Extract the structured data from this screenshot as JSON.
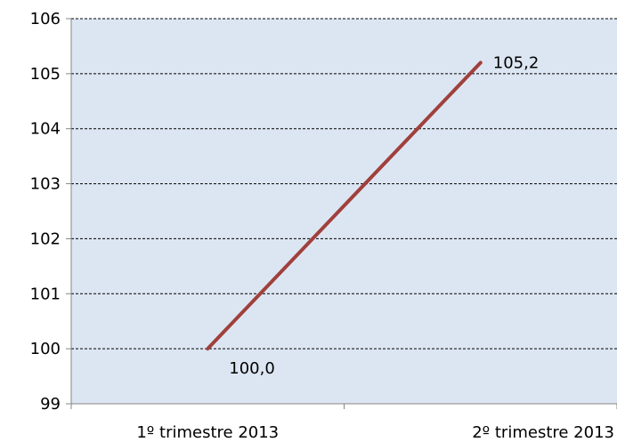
{
  "chart_data": {
    "type": "line",
    "title": "",
    "xlabel": "",
    "ylabel": "",
    "categories": [
      "1º trimestre 2013",
      "2º trimestre 2013"
    ],
    "series": [
      {
        "values": [
          100.0,
          105.2
        ],
        "data_labels": [
          "100,0",
          "105,2"
        ],
        "color": "#A0403C"
      }
    ],
    "ylim": [
      99,
      106
    ],
    "yticks": [
      99,
      100,
      101,
      102,
      103,
      104,
      105,
      106
    ],
    "ytick_labels": [
      "99",
      "100",
      "101",
      "102",
      "103",
      "104",
      "105",
      "106"
    ],
    "grid": "horizontal dashed",
    "legend": "none",
    "plot_background": "#DCE6F2"
  }
}
